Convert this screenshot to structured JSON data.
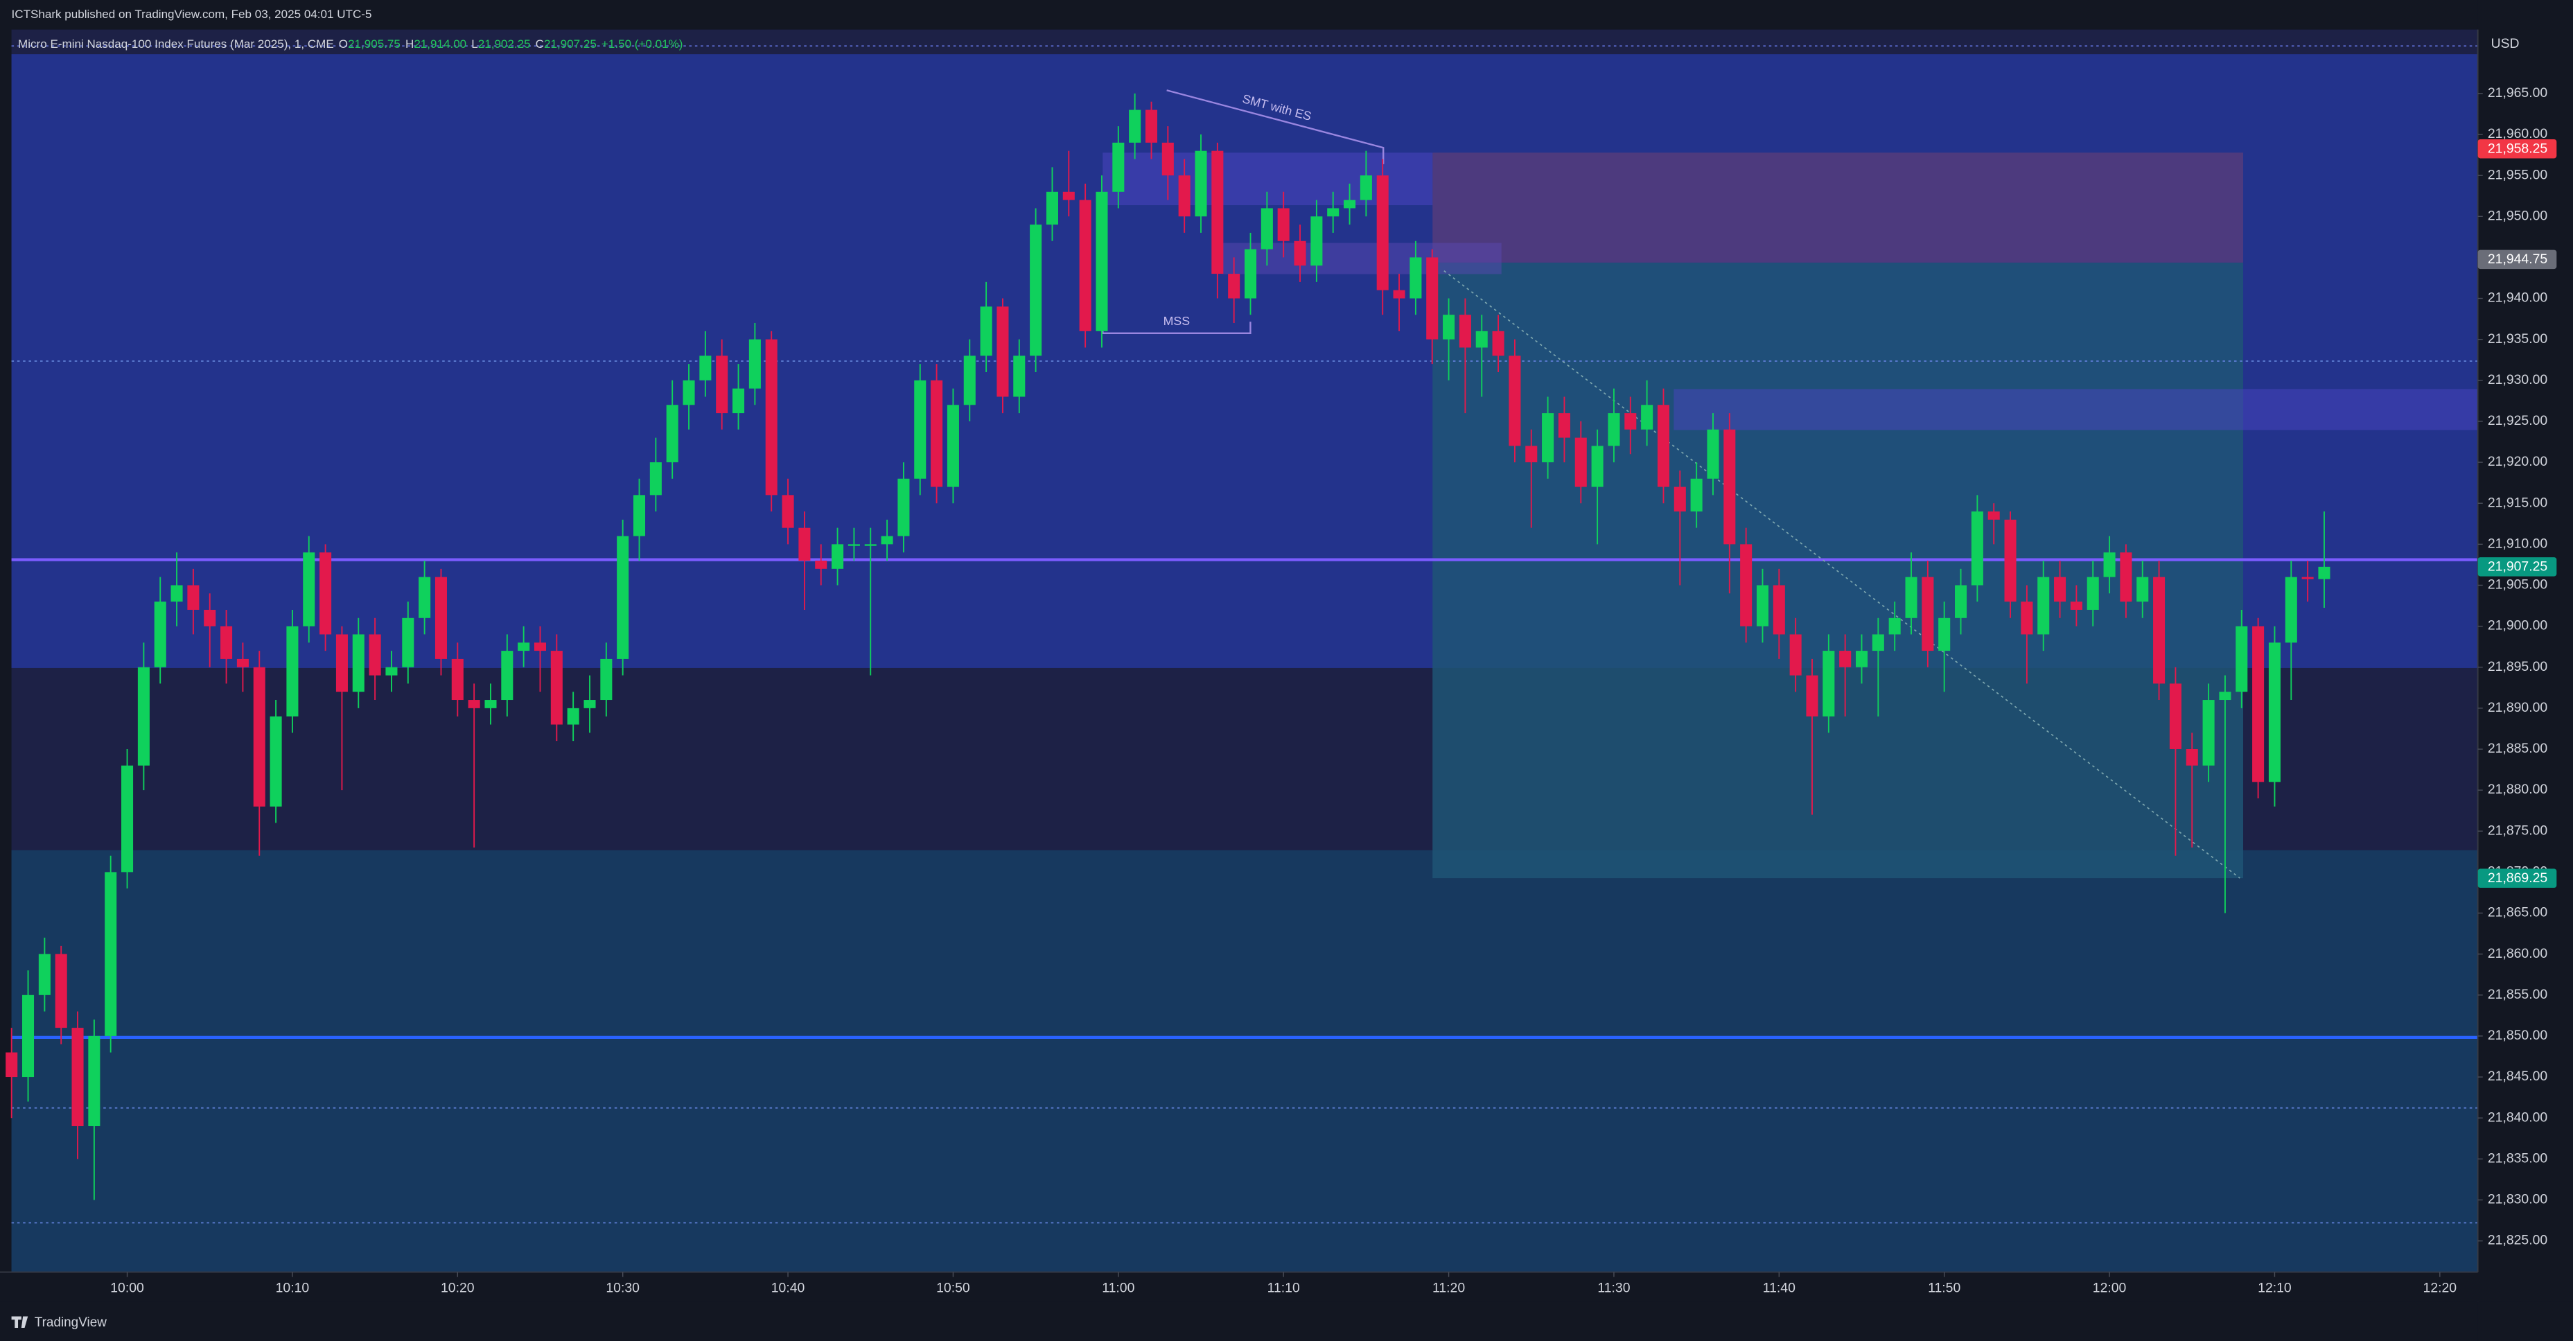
{
  "header": {
    "published": "ICTShark published on TradingView.com, Feb 03, 2025 04:01 UTC-5",
    "footer": "TradingView",
    "currency": "USD"
  },
  "chart_data": {
    "type": "candlestick",
    "title": "Micro E-mini Nasdaq-100 Index Futures (Mar 2025), 1, CME",
    "legend": {
      "o_key": "O",
      "o": "21,905.75",
      "h_key": "H",
      "h": "21,914.00",
      "l_key": "L",
      "l": "21,902.25",
      "c_key": "C",
      "c": "21,907.25",
      "change": "+1.50 (+0.01%)"
    },
    "annotations": [
      "SMT with ES",
      "MSS"
    ],
    "up_color": "#0fd15c",
    "down_color": "#e3194c",
    "open": [
      21848,
      21845,
      21855,
      21860,
      21851,
      21839,
      21850,
      21870,
      21883,
      21895,
      21903,
      21905,
      21902,
      21900,
      21896,
      21895,
      21878,
      21889,
      21900,
      21909,
      21899,
      21892,
      21899,
      21894,
      21895,
      21901,
      21906,
      21896,
      21891,
      21890,
      21891,
      21897,
      21898,
      21897,
      21888,
      21890,
      21891,
      21896,
      21911,
      21916,
      21920,
      21927,
      21930,
      21933,
      21926,
      21929,
      21935,
      21916,
      21912,
      21908,
      21907,
      21910,
      21910,
      21910,
      21911,
      21918,
      21930,
      21917,
      21927,
      21933,
      21939,
      21928,
      21933,
      21949,
      21953,
      21952,
      21936,
      21953,
      21959,
      21963,
      21959,
      21955,
      21950,
      21958,
      21943,
      21940,
      21946,
      21951,
      21947,
      21944,
      21950,
      21951,
      21952,
      21955,
      21941,
      21940,
      21945,
      21935,
      21938,
      21934,
      21936,
      21933,
      21922,
      21920,
      21926,
      21923,
      21917,
      21922,
      21926,
      21924,
      21927,
      21917,
      21914,
      21918,
      21924,
      21910,
      21900,
      21905,
      21899,
      21894,
      21889,
      21897,
      21895,
      21897,
      21899,
      21901,
      21906,
      21897,
      21901,
      21905,
      21914,
      21913,
      21903,
      21899,
      21906,
      21903,
      21902,
      21906,
      21909,
      21903,
      21906,
      21893,
      21885,
      21883,
      21891,
      21892,
      21900,
      21881,
      21898,
      21906,
      21905.75
    ],
    "high": [
      21851,
      21858,
      21862,
      21861,
      21853,
      21852,
      21872,
      21885,
      21898,
      21906,
      21909,
      21907,
      21904,
      21902,
      21898,
      21897,
      21891,
      21902,
      21911,
      21910,
      21900,
      21901,
      21901,
      21897,
      21903,
      21908,
      21907,
      21898,
      21893,
      21893,
      21899,
      21900,
      21900,
      21899,
      21892,
      21894,
      21898,
      21913,
      21918,
      21923,
      21930,
      21932,
      21936,
      21935,
      21932,
      21937,
      21936,
      21918,
      21914,
      21910,
      21912,
      21912,
      21912,
      21913,
      21920,
      21932,
      21932,
      21929,
      21935,
      21942,
      21940,
      21935,
      21951,
      21956,
      21958,
      21954,
      21955,
      21961,
      21965,
      21964,
      21961,
      21957,
      21960,
      21959,
      21945,
      21948,
      21953,
      21953,
      21949,
      21952,
      21953,
      21954,
      21958,
      21957,
      21943,
      21947,
      21946,
      21940,
      21940,
      21938,
      21938,
      21935,
      21924,
      21928,
      21928,
      21925,
      21924,
      21929,
      21928,
      21930,
      21929,
      21919,
      21920,
      21926,
      21926,
      21912,
      21907,
      21907,
      21901,
      21896,
      21899,
      21899,
      21899,
      21901,
      21903,
      21909,
      21908,
      21903,
      21907,
      21916,
      21915,
      21914,
      21905,
      21908,
      21908,
      21905,
      21908,
      21911,
      21910,
      21908,
      21908,
      21895,
      21887,
      21893,
      21894,
      21902,
      21901,
      21900,
      21908,
      21908,
      21914
    ],
    "low": [
      21840,
      21842,
      21853,
      21849,
      21835,
      21830,
      21848,
      21868,
      21880,
      21893,
      21900,
      21899,
      21895,
      21893,
      21892,
      21872,
      21876,
      21887,
      21898,
      21897,
      21880,
      21890,
      21891,
      21892,
      21893,
      21899,
      21894,
      21889,
      21873,
      21888,
      21889,
      21895,
      21892,
      21886,
      21886,
      21887,
      21889,
      21894,
      21908,
      21914,
      21918,
      21924,
      21928,
      21924,
      21924,
      21927,
      21914,
      21910,
      21902,
      21905,
      21905,
      21908,
      21894,
      21908,
      21909,
      21916,
      21915,
      21915,
      21925,
      21931,
      21926,
      21926,
      21931,
      21947,
      21950,
      21934,
      21934,
      21951,
      21957,
      21957,
      21952,
      21948,
      21948,
      21940,
      21937,
      21938,
      21944,
      21945,
      21942,
      21942,
      21948,
      21949,
      21950,
      21938,
      21936,
      21938,
      21932,
      21930,
      21926,
      21928,
      21931,
      21920,
      21912,
      21918,
      21920,
      21915,
      21910,
      21920,
      21921,
      21922,
      21915,
      21905,
      21912,
      21916,
      21904,
      21898,
      21898,
      21896,
      21892,
      21877,
      21887,
      21889,
      21893,
      21889,
      21897,
      21899,
      21895,
      21892,
      21899,
      21903,
      21910,
      21901,
      21893,
      21897,
      21901,
      21900,
      21900,
      21904,
      21901,
      21901,
      21891,
      21872,
      21873,
      21881,
      21865,
      21890,
      21879,
      21878,
      21891,
      21903,
      21902.25
    ],
    "close": [
      21845,
      21855,
      21860,
      21851,
      21839,
      21850,
      21870,
      21883,
      21895,
      21903,
      21905,
      21902,
      21900,
      21896,
      21895,
      21878,
      21889,
      21900,
      21909,
      21899,
      21892,
      21899,
      21894,
      21895,
      21901,
      21906,
      21896,
      21891,
      21890,
      21891,
      21897,
      21898,
      21897,
      21888,
      21890,
      21891,
      21896,
      21911,
      21916,
      21920,
      21927,
      21930,
      21933,
      21926,
      21929,
      21935,
      21916,
      21912,
      21908,
      21907,
      21910,
      21910,
      21910,
      21911,
      21918,
      21930,
      21917,
      21927,
      21933,
      21939,
      21928,
      21933,
      21949,
      21953,
      21952,
      21936,
      21953,
      21959,
      21963,
      21959,
      21955,
      21950,
      21958,
      21943,
      21940,
      21946,
      21951,
      21947,
      21944,
      21950,
      21951,
      21952,
      21955,
      21941,
      21940,
      21945,
      21935,
      21938,
      21934,
      21936,
      21933,
      21922,
      21920,
      21926,
      21923,
      21917,
      21922,
      21926,
      21924,
      21927,
      21917,
      21914,
      21918,
      21924,
      21910,
      21900,
      21905,
      21899,
      21894,
      21889,
      21897,
      21895,
      21897,
      21899,
      21901,
      21906,
      21897,
      21901,
      21905,
      21914,
      21913,
      21903,
      21899,
      21906,
      21903,
      21902,
      21906,
      21909,
      21903,
      21906,
      21893,
      21885,
      21883,
      21891,
      21892,
      21900,
      21881,
      21898,
      21906,
      21905.75,
      21907.25
    ],
    "xlim": [
      -0.7,
      149.3
    ],
    "xticks": [
      {
        "value": 7,
        "label": "10:00"
      },
      {
        "value": 17,
        "label": "10:10"
      },
      {
        "value": 27,
        "label": "10:20"
      },
      {
        "value": 37,
        "label": "10:30"
      },
      {
        "value": 47,
        "label": "10:40"
      },
      {
        "value": 57,
        "label": "10:50"
      },
      {
        "value": 67,
        "label": "11:00"
      },
      {
        "value": 77,
        "label": "11:10"
      },
      {
        "value": 87,
        "label": "11:20"
      },
      {
        "value": 97,
        "label": "11:30"
      },
      {
        "value": 107,
        "label": "11:40"
      },
      {
        "value": 117,
        "label": "11:50"
      },
      {
        "value": 127,
        "label": "12:00"
      },
      {
        "value": 137,
        "label": "12:10"
      },
      {
        "value": 147,
        "label": "12:20"
      }
    ],
    "ylim": [
      21821.2,
      21972.8
    ],
    "yticks": [
      {
        "value": 21825,
        "label": "21,825.00"
      },
      {
        "value": 21830,
        "label": "21,830.00"
      },
      {
        "value": 21835,
        "label": "21,835.00"
      },
      {
        "value": 21840,
        "label": "21,840.00"
      },
      {
        "value": 21845,
        "label": "21,845.00"
      },
      {
        "value": 21850,
        "label": "21,850.00"
      },
      {
        "value": 21855,
        "label": "21,855.00"
      },
      {
        "value": 21860,
        "label": "21,860.00"
      },
      {
        "value": 21865,
        "label": "21,865.00"
      },
      {
        "value": 21870,
        "label": "21,870.00"
      },
      {
        "value": 21875,
        "label": "21,875.00"
      },
      {
        "value": 21880,
        "label": "21,880.00"
      },
      {
        "value": 21885,
        "label": "21,885.00"
      },
      {
        "value": 21890,
        "label": "21,890.00"
      },
      {
        "value": 21895,
        "label": "21,895.00"
      },
      {
        "value": 21900,
        "label": "21,900.00"
      },
      {
        "value": 21905,
        "label": "21,905.00"
      },
      {
        "value": 21910,
        "label": "21,910.00"
      },
      {
        "value": 21915,
        "label": "21,915.00"
      },
      {
        "value": 21920,
        "label": "21,920.00"
      },
      {
        "value": 21925,
        "label": "21,925.00"
      },
      {
        "value": 21930,
        "label": "21,930.00"
      },
      {
        "value": 21935,
        "label": "21,935.00"
      },
      {
        "value": 21940,
        "label": "21,940.00"
      },
      {
        "value": 21945,
        "label": "21,945.00"
      },
      {
        "value": 21950,
        "label": "21,950.00"
      },
      {
        "value": 21955,
        "label": "21,955.00"
      },
      {
        "value": 21960,
        "label": "21,960.00"
      },
      {
        "value": 21965,
        "label": "21,965.00"
      }
    ],
    "price_labels": [
      {
        "value": 21958.25,
        "label": "21,958.25",
        "color": "#f23645"
      },
      {
        "value": 21944.75,
        "label": "21,944.75",
        "color": "#6a6d78"
      },
      {
        "value": 21907.25,
        "label": "21,907.25",
        "color": "#089981"
      },
      {
        "value": 21869.25,
        "label": "21,869.25",
        "color": "#089981"
      }
    ]
  }
}
